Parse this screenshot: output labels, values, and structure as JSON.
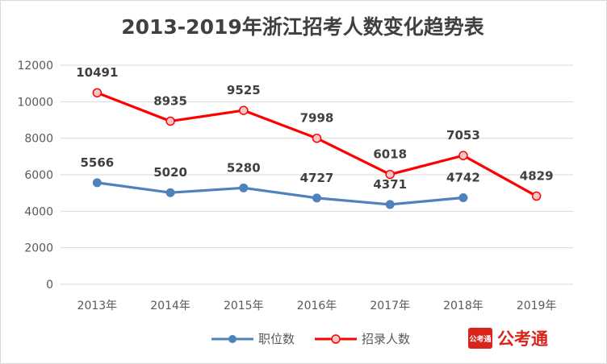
{
  "chart_data": {
    "type": "line",
    "title": "2013-2019年浙江招考人数变化趋势表",
    "categories": [
      "2013年",
      "2014年",
      "2015年",
      "2016年",
      "2017年",
      "2018年",
      "2019年"
    ],
    "ylim": [
      0,
      12000
    ],
    "yticks": [
      0,
      2000,
      4000,
      6000,
      8000,
      10000,
      12000
    ],
    "grid": true,
    "legend_position": "bottom",
    "series": [
      {
        "name": "职位数",
        "color": "#4f81bd",
        "values": [
          5566,
          5020,
          5280,
          4727,
          4371,
          4742,
          null
        ]
      },
      {
        "name": "招录人数",
        "color": "#ff0000",
        "values": [
          10491,
          8935,
          9525,
          7998,
          6018,
          7053,
          4829
        ]
      }
    ]
  },
  "brand": {
    "seal_text": "公考通",
    "name": "公考通"
  }
}
